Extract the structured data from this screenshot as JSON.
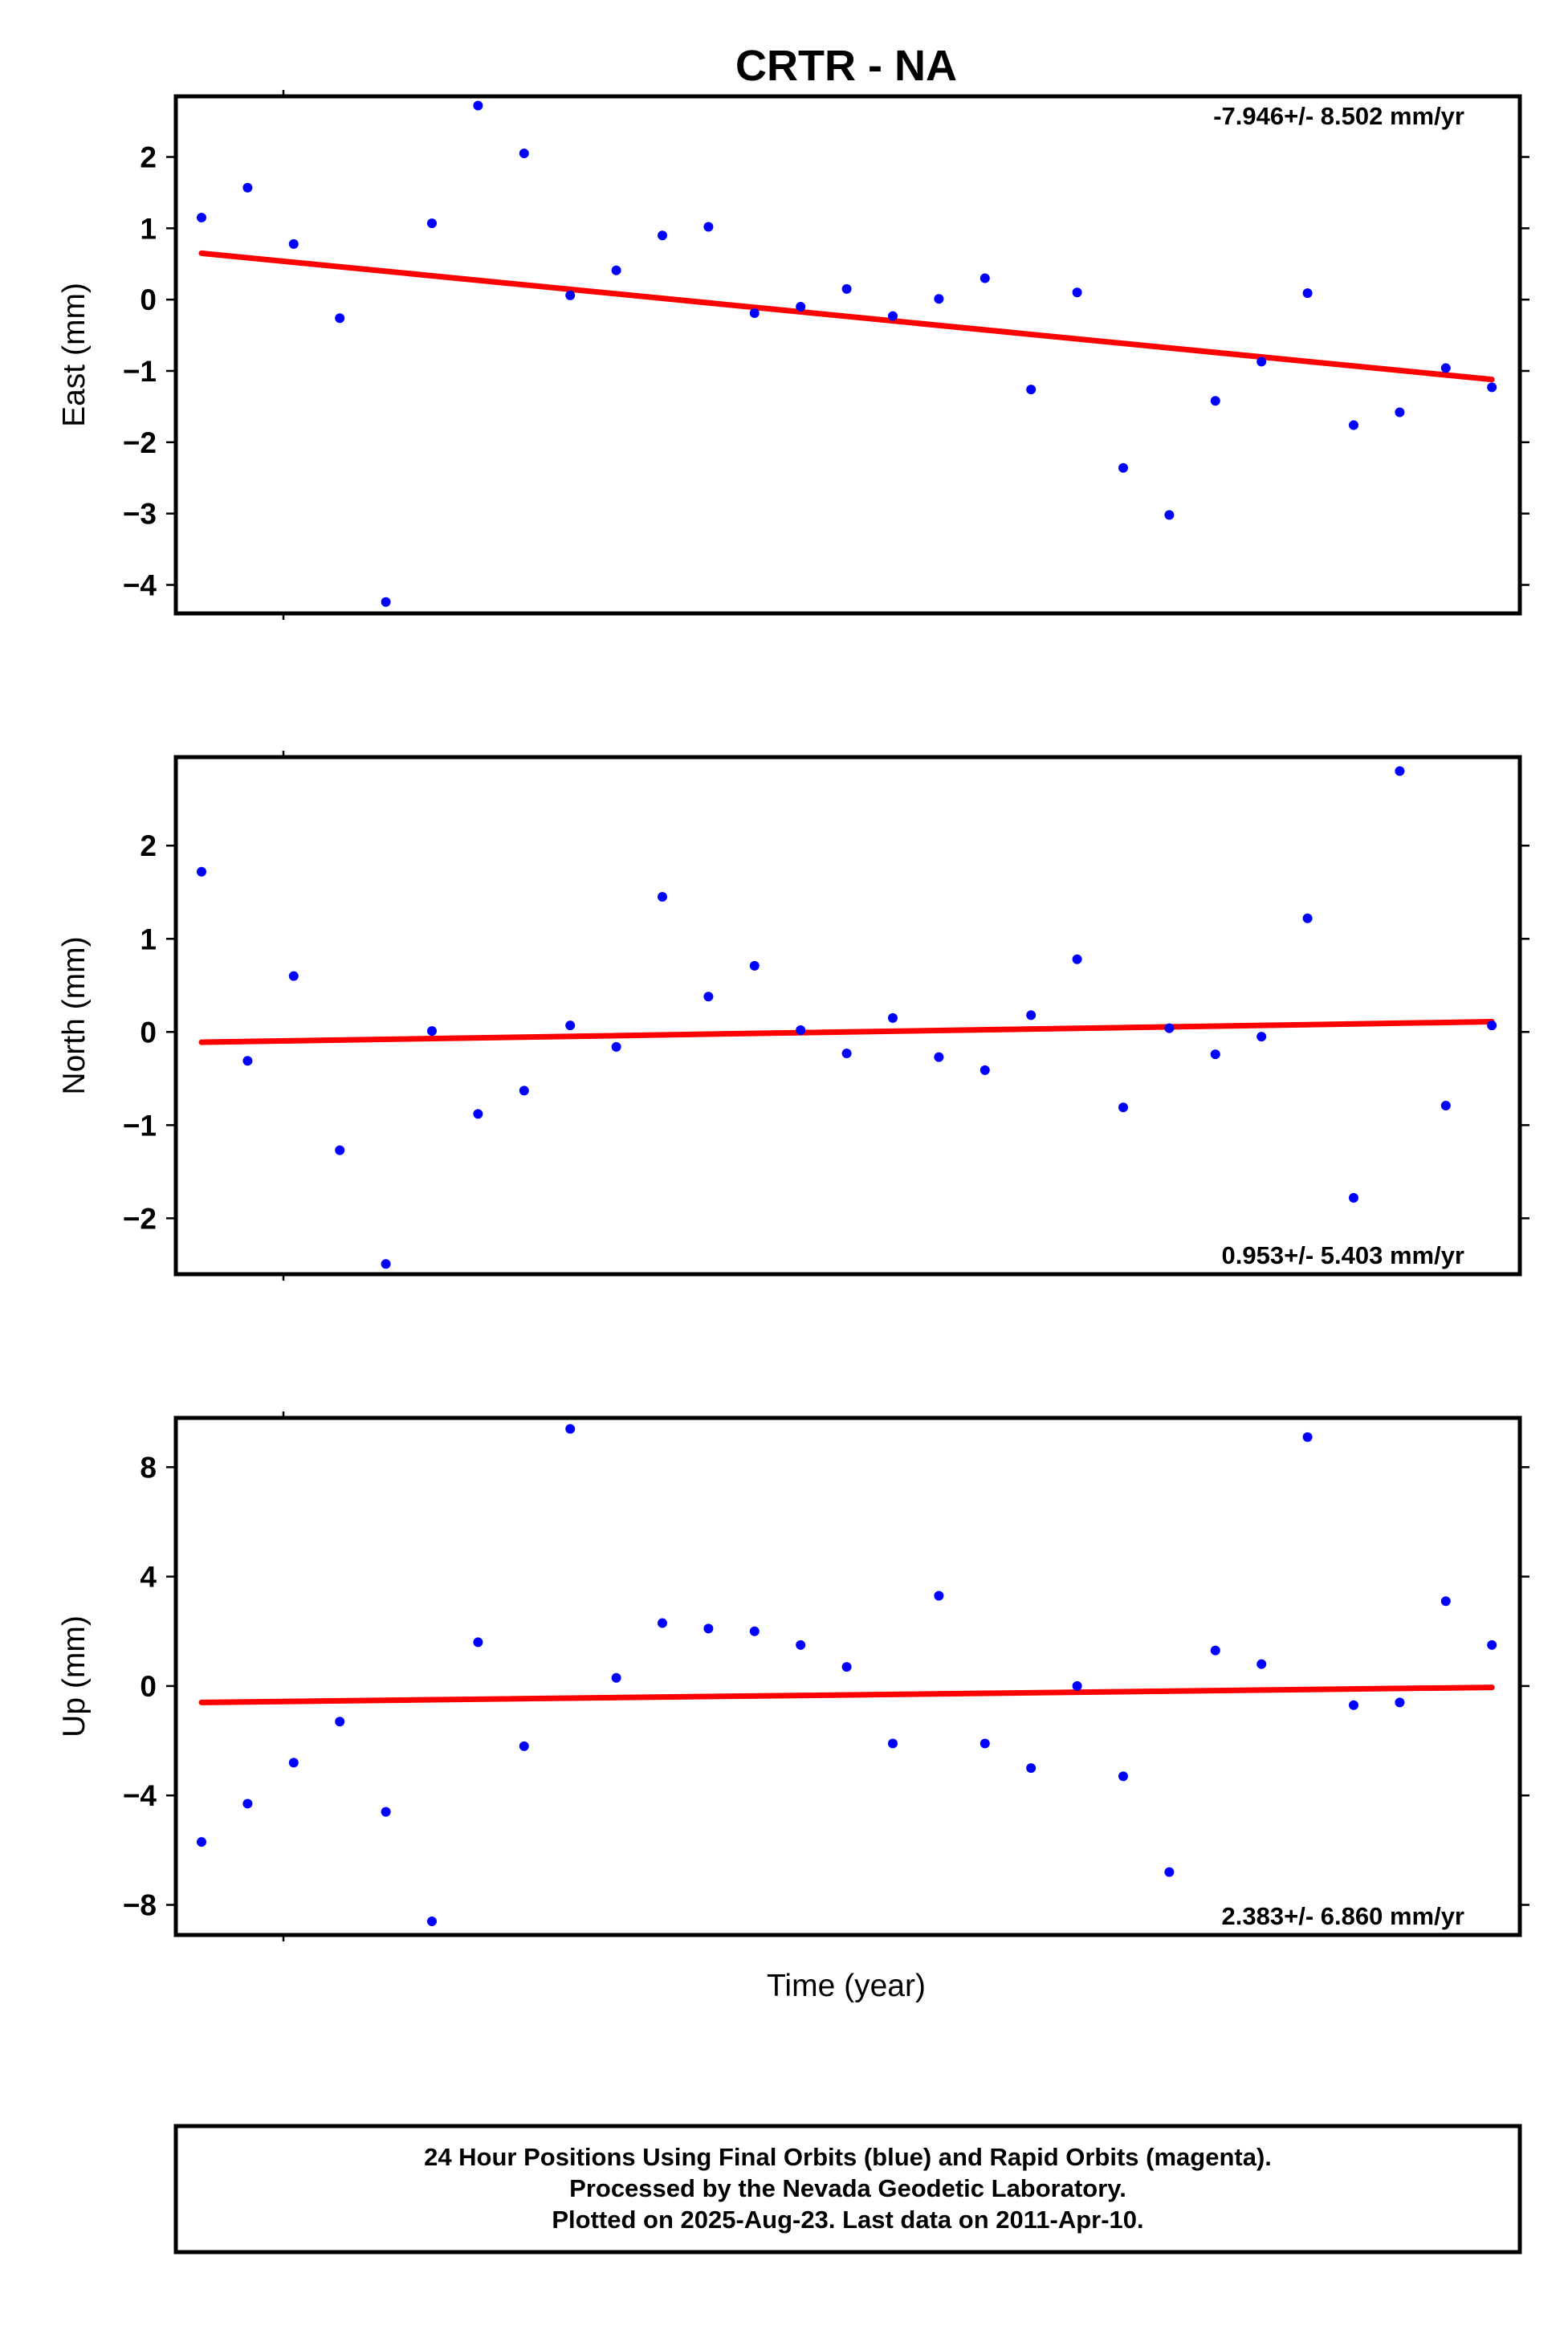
{
  "title": "CRTR - NA",
  "xlabel": "Time (year)",
  "footer": {
    "line1": "24 Hour Positions Using Final Orbits (blue) and Rapid Orbits (magenta).",
    "line2": "Processed by the Nevada Geodetic Laboratory.",
    "line3": "Plotted on 2025-Aug-23. Last data on 2011-Apr-10."
  },
  "colors": {
    "points": "#0000ff",
    "trend": "#ff0000",
    "frame": "#000000"
  },
  "chart_data": [
    {
      "type": "scatter",
      "ylabel": "East (mm)",
      "rate_text": "-7.946+/- 8.502 mm/yr",
      "rate_position": "top-right",
      "ylim": [
        -4.4,
        2.85
      ],
      "yticks": [
        2,
        1,
        0,
        -1,
        -2,
        -3,
        -4
      ],
      "ytick_labels": [
        "2",
        "1",
        "0",
        "−1",
        "−2",
        "−3",
        "−4"
      ],
      "values": [
        1.15,
        1.57,
        0.78,
        -0.26,
        -4.24,
        1.07,
        2.72,
        2.05,
        0.06,
        0.41,
        0.9,
        1.02,
        -0.19,
        -0.1,
        0.15,
        -0.23,
        0.01,
        0.3,
        -1.26,
        0.1,
        -2.36,
        -3.02,
        -1.42,
        -0.87,
        0.09,
        -1.76,
        -1.58,
        -0.96,
        -1.23
      ],
      "trend": [
        0.65,
        -1.12
      ]
    },
    {
      "type": "scatter",
      "ylabel": "North (mm)",
      "rate_text": "0.953+/- 5.403 mm/yr",
      "rate_position": "bottom-right",
      "ylim": [
        -2.6,
        2.95
      ],
      "yticks": [
        2,
        1,
        0,
        -1,
        -2
      ],
      "ytick_labels": [
        "2",
        "1",
        "0",
        "−1",
        "−2"
      ],
      "values": [
        1.72,
        -0.31,
        0.6,
        -1.27,
        -2.49,
        0.01,
        -0.88,
        -0.63,
        0.07,
        -0.16,
        1.45,
        0.38,
        0.71,
        0.02,
        -0.23,
        0.15,
        -0.27,
        -0.41,
        0.18,
        0.78,
        -0.81,
        0.04,
        -0.24,
        -0.05,
        1.22,
        -1.78,
        2.8,
        -0.79,
        0.07
      ],
      "trend": [
        -0.11,
        0.11
      ]
    },
    {
      "type": "scatter",
      "ylabel": "Up (mm)",
      "rate_text": "2.383+/- 6.860 mm/yr",
      "rate_position": "bottom-right",
      "ylim": [
        -9.1,
        9.8
      ],
      "yticks": [
        8,
        4,
        0,
        -4,
        -8
      ],
      "ytick_labels": [
        "8",
        "4",
        "0",
        "−4",
        "−8"
      ],
      "values": [
        -5.7,
        -4.3,
        -2.8,
        -1.3,
        -4.6,
        -8.6,
        1.6,
        -2.2,
        9.4,
        0.3,
        2.3,
        2.1,
        2.0,
        1.5,
        0.7,
        -2.1,
        3.3,
        -2.1,
        -3.0,
        0.0,
        -3.3,
        -6.8,
        1.3,
        0.8,
        9.1,
        -0.7,
        -0.6,
        3.1,
        1.5
      ],
      "trend": [
        -0.6,
        -0.05
      ]
    }
  ]
}
